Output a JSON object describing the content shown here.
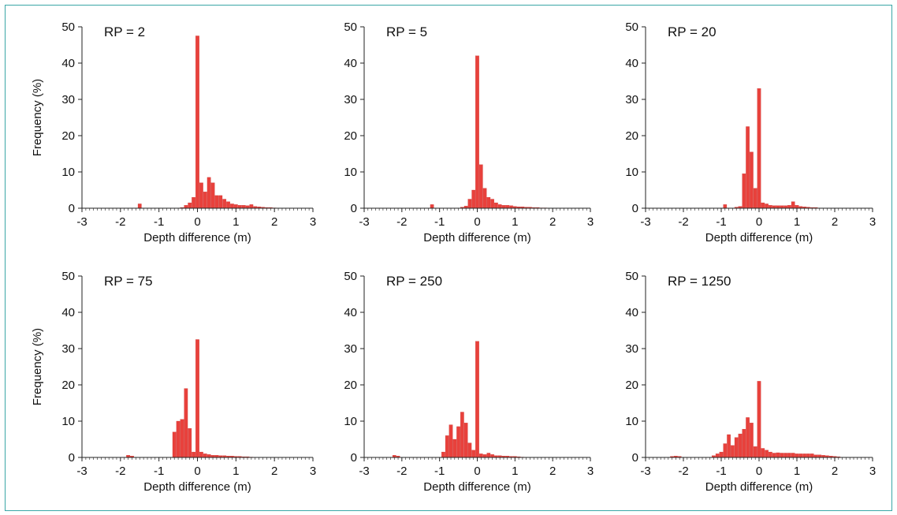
{
  "colors": {
    "bar": "#e8413c",
    "bar_edge": "#c9302c",
    "axis": "#222222",
    "frame": "#3aa6a6"
  },
  "chart_data": [
    {
      "type": "bar",
      "title": "RP = 2",
      "xlabel": "Depth difference (m)",
      "ylabel": "Frequency (%)",
      "xlim": [
        -3,
        3
      ],
      "ylim": [
        0,
        50
      ],
      "xticks": [
        "-3",
        "-2",
        "-1",
        "0",
        "1",
        "2",
        "3"
      ],
      "yticks": [
        "0",
        "10",
        "20",
        "30",
        "40",
        "50"
      ],
      "bin_width": 0.1,
      "x": [
        -1.5,
        -0.4,
        -0.3,
        -0.2,
        -0.1,
        0.0,
        0.1,
        0.2,
        0.3,
        0.4,
        0.5,
        0.6,
        0.7,
        0.8,
        0.9,
        1.0,
        1.1,
        1.2,
        1.3,
        1.4,
        1.5,
        1.6,
        1.7,
        1.8,
        1.9,
        2.0
      ],
      "values": [
        1.2,
        0.2,
        0.8,
        1.5,
        3.0,
        47.5,
        7.0,
        4.5,
        8.5,
        7.0,
        3.5,
        3.5,
        2.5,
        1.8,
        1.2,
        1.0,
        0.8,
        0.8,
        0.7,
        1.0,
        0.5,
        0.4,
        0.3,
        0.2,
        0.2,
        0.1
      ]
    },
    {
      "type": "bar",
      "title": "RP = 5",
      "xlabel": "Depth difference (m)",
      "ylabel": "",
      "xlim": [
        -3,
        3
      ],
      "ylim": [
        0,
        50
      ],
      "xticks": [
        "-3",
        "-2",
        "-1",
        "0",
        "1",
        "2",
        "3"
      ],
      "yticks": [
        "0",
        "10",
        "20",
        "30",
        "40",
        "50"
      ],
      "bin_width": 0.1,
      "x": [
        -1.2,
        -0.4,
        -0.3,
        -0.2,
        -0.1,
        0.0,
        0.1,
        0.2,
        0.3,
        0.4,
        0.5,
        0.6,
        0.7,
        0.8,
        0.9,
        1.0,
        1.1,
        1.2,
        1.3,
        1.4,
        1.5,
        1.6,
        1.7,
        1.8
      ],
      "values": [
        1.0,
        0.3,
        0.6,
        2.5,
        5.0,
        42.0,
        12.0,
        5.5,
        3.0,
        2.5,
        1.5,
        1.0,
        0.8,
        0.8,
        0.7,
        0.5,
        0.4,
        0.4,
        0.3,
        0.3,
        0.2,
        0.2,
        0.1,
        0.1
      ]
    },
    {
      "type": "bar",
      "title": "RP = 20",
      "xlabel": "Depth difference (m)",
      "ylabel": "",
      "xlim": [
        -3,
        3
      ],
      "ylim": [
        0,
        50
      ],
      "xticks": [
        "-3",
        "-2",
        "-1",
        "0",
        "1",
        "2",
        "3"
      ],
      "yticks": [
        "0",
        "10",
        "20",
        "30",
        "40",
        "50"
      ],
      "bin_width": 0.1,
      "x": [
        -0.9,
        -0.6,
        -0.5,
        -0.4,
        -0.3,
        -0.2,
        -0.1,
        0.0,
        0.1,
        0.2,
        0.3,
        0.4,
        0.5,
        0.6,
        0.7,
        0.8,
        0.9,
        1.0,
        1.1,
        1.2,
        1.3,
        1.4,
        1.5
      ],
      "values": [
        1.0,
        0.3,
        0.5,
        9.5,
        22.5,
        15.5,
        5.5,
        33.0,
        1.5,
        1.2,
        0.8,
        0.7,
        0.7,
        0.7,
        0.7,
        0.8,
        1.8,
        0.8,
        0.5,
        0.4,
        0.3,
        0.2,
        0.2
      ]
    },
    {
      "type": "bar",
      "title": "RP = 75",
      "xlabel": "Depth difference (m)",
      "ylabel": "Frequency (%)",
      "xlim": [
        -3,
        3
      ],
      "ylim": [
        0,
        50
      ],
      "xticks": [
        "-3",
        "-2",
        "-1",
        "0",
        "1",
        "2",
        "3"
      ],
      "yticks": [
        "0",
        "10",
        "20",
        "30",
        "40",
        "50"
      ],
      "bin_width": 0.1,
      "x": [
        -1.8,
        -1.7,
        -0.6,
        -0.5,
        -0.4,
        -0.3,
        -0.2,
        -0.1,
        0.0,
        0.1,
        0.2,
        0.3,
        0.4,
        0.5,
        0.6,
        0.7,
        0.8,
        0.9,
        1.0,
        1.1,
        1.2,
        1.3,
        1.4
      ],
      "values": [
        0.6,
        0.4,
        7.0,
        10.0,
        10.5,
        19.0,
        8.0,
        1.5,
        32.5,
        1.5,
        1.0,
        0.8,
        0.6,
        0.6,
        0.5,
        0.5,
        0.4,
        0.4,
        0.3,
        0.3,
        0.2,
        0.2,
        0.1
      ]
    },
    {
      "type": "bar",
      "title": "RP = 250",
      "xlabel": "Depth difference (m)",
      "ylabel": "",
      "xlim": [
        -3,
        3
      ],
      "ylim": [
        0,
        50
      ],
      "xticks": [
        "-3",
        "-2",
        "-1",
        "0",
        "1",
        "2",
        "3"
      ],
      "yticks": [
        "0",
        "10",
        "20",
        "30",
        "40",
        "50"
      ],
      "bin_width": 0.1,
      "x": [
        -2.2,
        -2.1,
        -0.9,
        -0.8,
        -0.7,
        -0.6,
        -0.5,
        -0.4,
        -0.3,
        -0.2,
        -0.1,
        0.0,
        0.1,
        0.2,
        0.3,
        0.4,
        0.5,
        0.6,
        0.7,
        0.8,
        0.9,
        1.0,
        1.1,
        1.2
      ],
      "values": [
        0.6,
        0.4,
        1.5,
        6.0,
        9.0,
        5.0,
        8.5,
        12.5,
        9.5,
        4.0,
        2.0,
        32.0,
        1.0,
        0.8,
        1.2,
        0.8,
        0.5,
        0.5,
        0.4,
        0.4,
        0.3,
        0.3,
        0.2,
        0.1
      ]
    },
    {
      "type": "bar",
      "title": "RP = 1250",
      "xlabel": "Depth difference (m)",
      "ylabel": "",
      "xlim": [
        -3,
        3
      ],
      "ylim": [
        0,
        50
      ],
      "xticks": [
        "-3",
        "-2",
        "-1",
        "0",
        "1",
        "2",
        "3"
      ],
      "yticks": [
        "0",
        "10",
        "20",
        "30",
        "40",
        "50"
      ],
      "bin_width": 0.1,
      "x": [
        -2.3,
        -2.2,
        -2.1,
        -1.2,
        -1.1,
        -1.0,
        -0.9,
        -0.8,
        -0.7,
        -0.6,
        -0.5,
        -0.4,
        -0.3,
        -0.2,
        -0.1,
        0.0,
        0.1,
        0.2,
        0.3,
        0.4,
        0.5,
        0.6,
        0.7,
        0.8,
        0.9,
        1.0,
        1.1,
        1.2,
        1.3,
        1.4,
        1.5,
        1.6,
        1.7,
        1.8,
        1.9,
        2.0,
        2.1
      ],
      "values": [
        0.3,
        0.4,
        0.3,
        0.5,
        1.0,
        1.5,
        3.8,
        6.3,
        3.3,
        5.5,
        6.5,
        7.8,
        11.0,
        9.5,
        3.0,
        21.0,
        2.5,
        2.0,
        1.5,
        1.2,
        1.3,
        1.2,
        1.2,
        1.2,
        1.2,
        1.0,
        1.0,
        1.0,
        1.0,
        1.0,
        0.7,
        0.7,
        0.6,
        0.5,
        0.4,
        0.3,
        0.2
      ]
    }
  ]
}
